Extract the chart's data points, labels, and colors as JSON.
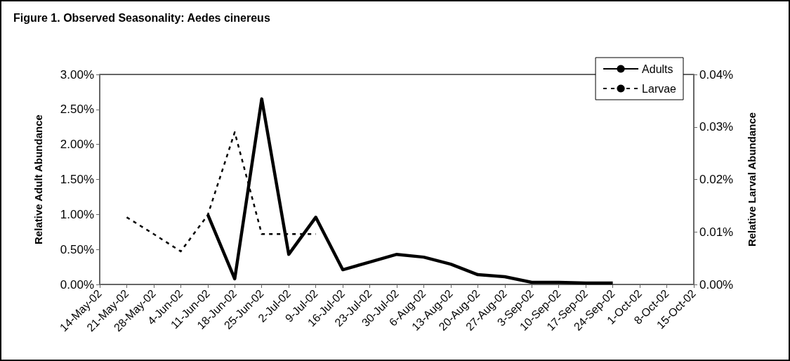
{
  "chart_data": {
    "type": "line",
    "title": "Figure 1. Observed Seasonality: Aedes cinereus",
    "ylabel": "Relative Adult Abundance",
    "y2label": "Relative Larval Abundance",
    "categories": [
      "14-May-02",
      "21-May-02",
      "28-May-02",
      "4-Jun-02",
      "11-Jun-02",
      "18-Jun-02",
      "25-Jun-02",
      "2-Jul-02",
      "9-Jul-02",
      "16-Jul-02",
      "23-Jul-02",
      "30-Jul-02",
      "6-Aug-02",
      "13-Aug-02",
      "20-Aug-02",
      "27-Aug-02",
      "3-Sep-02",
      "10-Sep-02",
      "17-Sep-02",
      "24-Sep-02",
      "1-Oct-02",
      "8-Oct-02",
      "15-Oct-02"
    ],
    "series": [
      {
        "name": "Adults",
        "color": "#000000",
        "line_style": "solid",
        "values": [
          null,
          null,
          null,
          null,
          1.0,
          0.08,
          2.65,
          0.43,
          0.96,
          0.21,
          0.32,
          0.43,
          0.39,
          0.29,
          0.14,
          0.11,
          0.03,
          0.03,
          0.02,
          0.02,
          null,
          null,
          null
        ]
      },
      {
        "name": "Larvae",
        "color": "#000000",
        "line_style": "dashed",
        "axis": "y2",
        "values": [
          null,
          0.0128,
          0.0096,
          0.0063,
          0.0132,
          0.029,
          0.0096,
          0.0096,
          0.0096,
          null,
          null,
          null,
          null,
          null,
          null,
          null,
          null,
          null,
          null,
          null,
          null,
          null,
          null
        ]
      }
    ],
    "ylim": [
      0,
      3
    ],
    "yticks": [
      {
        "value": 0,
        "label": "0.00%"
      },
      {
        "value": 0.5,
        "label": "0.50%"
      },
      {
        "value": 1,
        "label": "1.00%"
      },
      {
        "value": 1.5,
        "label": "1.50%"
      },
      {
        "value": 2,
        "label": "2.00%"
      },
      {
        "value": 2.5,
        "label": "2.50%"
      },
      {
        "value": 3,
        "label": "3.00%"
      }
    ],
    "y2lim": [
      0,
      0.04
    ],
    "y2ticks": [
      {
        "value": 0,
        "label": "0.00%"
      },
      {
        "value": 0.01,
        "label": "0.01%"
      },
      {
        "value": 0.02,
        "label": "0.02%"
      },
      {
        "value": 0.03,
        "label": "0.03%"
      },
      {
        "value": 0.04,
        "label": "0.04%"
      }
    ],
    "grid": false,
    "legend": "top right",
    "marker": "none"
  }
}
